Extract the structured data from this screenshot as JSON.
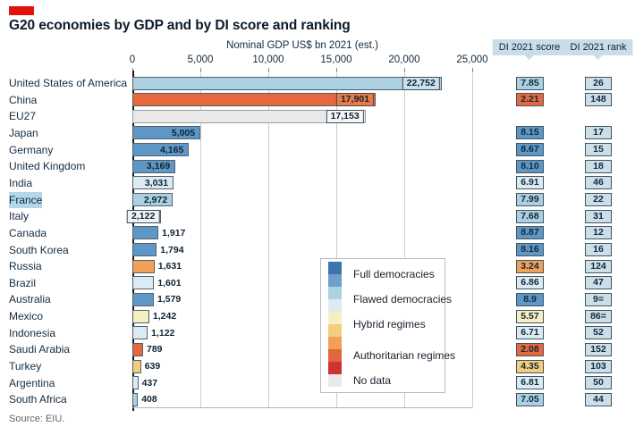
{
  "brand": {
    "red_tab_color": "#e3120b"
  },
  "title": "G20 economies by GDP and by DI score and ranking",
  "axis": {
    "label": "Nominal GDP US$ bn 2021 (est.)",
    "tick_labels": [
      "0",
      "5,000",
      "10,000",
      "15,000",
      "20,000",
      "25,000"
    ],
    "max_value": 25000
  },
  "columns": {
    "score_header": "DI 2021 score",
    "rank_header": "DI 2021 rank"
  },
  "regime_colors": {
    "full": "#5e97c6",
    "flawed_high": "#aad0e2",
    "flawed_low": "#dcebf3",
    "hybrid_high": "#f6efc2",
    "hybrid_low": "#f3cd7e",
    "auth_high": "#f0a159",
    "auth": "#e5693d",
    "nodata": "#e9e9e9"
  },
  "rank_box_color": "#ccdee9",
  "rows": [
    {
      "country": "United States of America",
      "gdp": 22752,
      "gdp_label": "22,752",
      "score": "7.85",
      "rank": "26",
      "regime": "flawed_high",
      "value_pos": "chip",
      "chip_bg": "#c9e2ee"
    },
    {
      "country": "China",
      "gdp": 17901,
      "gdp_label": "17,901",
      "score": "2.21",
      "rank": "148",
      "regime": "auth",
      "value_pos": "chip",
      "chip_bg": "#ea7a46"
    },
    {
      "country": "EU27",
      "gdp": 17153,
      "gdp_label": "17,153",
      "score": "",
      "rank": "",
      "regime": "nodata",
      "value_pos": "chip",
      "chip_bg": "#f6f6f6"
    },
    {
      "country": "Japan",
      "gdp": 5005,
      "gdp_label": "5,005",
      "score": "8.15",
      "rank": "17",
      "regime": "full",
      "value_pos": "in"
    },
    {
      "country": "Germany",
      "gdp": 4165,
      "gdp_label": "4,165",
      "score": "8.67",
      "rank": "15",
      "regime": "full",
      "value_pos": "in"
    },
    {
      "country": "United Kingdom",
      "gdp": 3169,
      "gdp_label": "3,169",
      "score": "8.10",
      "rank": "18",
      "regime": "full",
      "value_pos": "in"
    },
    {
      "country": "India",
      "gdp": 3031,
      "gdp_label": "3,031",
      "score": "6.91",
      "rank": "46",
      "regime": "flawed_low",
      "value_pos": "in"
    },
    {
      "country": "France",
      "gdp": 2972,
      "gdp_label": "2,972",
      "score": "7.99",
      "rank": "22",
      "regime": "flawed_high",
      "value_pos": "in",
      "highlight": true
    },
    {
      "country": "Italy",
      "gdp": 2122,
      "gdp_label": "2,122",
      "score": "7.68",
      "rank": "31",
      "regime": "flawed_high",
      "value_pos": "chip",
      "chip_bg": "#ecf4f9"
    },
    {
      "country": "Canada",
      "gdp": 1917,
      "gdp_label": "1,917",
      "score": "8.87",
      "rank": "12",
      "regime": "full",
      "value_pos": "out"
    },
    {
      "country": "South Korea",
      "gdp": 1794,
      "gdp_label": "1,794",
      "score": "8.16",
      "rank": "16",
      "regime": "full",
      "value_pos": "out"
    },
    {
      "country": "Russia",
      "gdp": 1631,
      "gdp_label": "1,631",
      "score": "3.24",
      "rank": "124",
      "regime": "auth_high",
      "value_pos": "out"
    },
    {
      "country": "Brazil",
      "gdp": 1601,
      "gdp_label": "1,601",
      "score": "6.86",
      "rank": "47",
      "regime": "flawed_low",
      "value_pos": "out"
    },
    {
      "country": "Australia",
      "gdp": 1579,
      "gdp_label": "1,579",
      "score": "8.9",
      "rank": "9=",
      "regime": "full",
      "value_pos": "out"
    },
    {
      "country": "Mexico",
      "gdp": 1242,
      "gdp_label": "1,242",
      "score": "5.57",
      "rank": "86=",
      "regime": "hybrid_high",
      "value_pos": "out"
    },
    {
      "country": "Indonesia",
      "gdp": 1122,
      "gdp_label": "1,122",
      "score": "6.71",
      "rank": "52",
      "regime": "flawed_low",
      "value_pos": "out"
    },
    {
      "country": "Saudi Arabia",
      "gdp": 789,
      "gdp_label": "789",
      "score": "2.08",
      "rank": "152",
      "regime": "auth",
      "value_pos": "out"
    },
    {
      "country": "Turkey",
      "gdp": 639,
      "gdp_label": "639",
      "score": "4.35",
      "rank": "103",
      "regime": "hybrid_low",
      "value_pos": "out"
    },
    {
      "country": "Argentina",
      "gdp": 437,
      "gdp_label": "437",
      "score": "6.81",
      "rank": "50",
      "regime": "flawed_low",
      "value_pos": "out"
    },
    {
      "country": "South Africa",
      "gdp": 408,
      "gdp_label": "408",
      "score": "7.05",
      "rank": "44",
      "regime": "flawed_high",
      "value_pos": "out"
    }
  ],
  "legend": {
    "swatches": [
      "#3d74ae",
      "#6f9fca",
      "#abd1e2",
      "#dcebf3",
      "#f6efc2",
      "#f3cd7e",
      "#f0a159",
      "#e2663c",
      "#ce3333",
      "#e9e9e9"
    ],
    "items": [
      {
        "label": "Full democracies",
        "swatch_span": 2
      },
      {
        "label": "Flawed democracies",
        "swatch_span": 2
      },
      {
        "label": "Hybrid regimes",
        "swatch_span": 2
      },
      {
        "label": "Authoritarian regimes",
        "swatch_span": 3
      },
      {
        "label": "No data",
        "swatch_span": 1
      }
    ]
  },
  "source": "Source: EIU.",
  "chart_data": {
    "type": "bar",
    "orientation": "horizontal",
    "title": "G20 economies by GDP and by DI score and ranking",
    "xlabel": "Nominal GDP US$ bn 2021 (est.)",
    "xlim": [
      0,
      25000
    ],
    "x_ticks": [
      0,
      5000,
      10000,
      15000,
      20000,
      25000
    ],
    "grid": true,
    "categories": [
      "United States of America",
      "China",
      "EU27",
      "Japan",
      "Germany",
      "United Kingdom",
      "India",
      "France",
      "Italy",
      "Canada",
      "South Korea",
      "Russia",
      "Brazil",
      "Australia",
      "Mexico",
      "Indonesia",
      "Saudi Arabia",
      "Turkey",
      "Argentina",
      "South Africa"
    ],
    "values": [
      22752,
      17901,
      17153,
      5005,
      4165,
      3169,
      3031,
      2972,
      2122,
      1917,
      1794,
      1631,
      1601,
      1579,
      1242,
      1122,
      789,
      639,
      437,
      408
    ],
    "di_2021_score": [
      "7.85",
      "2.21",
      null,
      "8.15",
      "8.67",
      "8.10",
      "6.91",
      "7.99",
      "7.68",
      "8.87",
      "8.16",
      "3.24",
      "6.86",
      "8.9",
      "5.57",
      "6.71",
      "2.08",
      "4.35",
      "6.81",
      "7.05"
    ],
    "di_2021_rank": [
      "26",
      "148",
      null,
      "17",
      "15",
      "18",
      "46",
      "22",
      "31",
      "12",
      "16",
      "124",
      "47",
      "9=",
      "86=",
      "52",
      "152",
      "103",
      "50",
      "44"
    ],
    "legend_entries": [
      "Full democracies",
      "Flawed democracies",
      "Hybrid regimes",
      "Authoritarian regimes",
      "No data"
    ],
    "legend_position": "center-right",
    "source": "Source: EIU."
  }
}
